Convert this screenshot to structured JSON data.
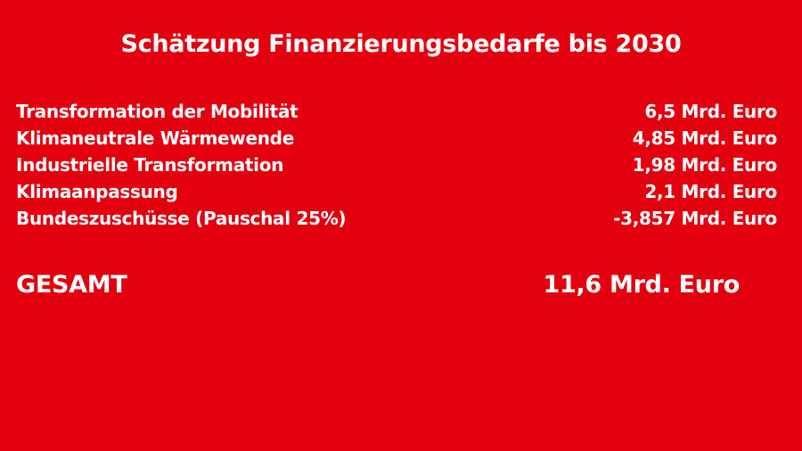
{
  "title": "Schätzung Finanzierungsbedarfe bis 2030",
  "items": [
    {
      "label": "Transformation der Mobilität",
      "value": "6,5 Mrd. Euro"
    },
    {
      "label": "Klimaneutrale Wärmewende",
      "value": "4,85 Mrd. Euro"
    },
    {
      "label": "Industrielle Transformation",
      "value": "1,98 Mrd. Euro"
    },
    {
      "label": "Klimaanpassung",
      "value": "2,1 Mrd. Euro"
    },
    {
      "label": "Bundeszuschüsse (Pauschal 25%)",
      "value": "-3,857 Mrd. Euro"
    }
  ],
  "total": {
    "label": "GESAMT",
    "value": "11,6 Mrd. Euro"
  },
  "colors": {
    "background": "#E3000F",
    "text": "#FFFFFF"
  }
}
